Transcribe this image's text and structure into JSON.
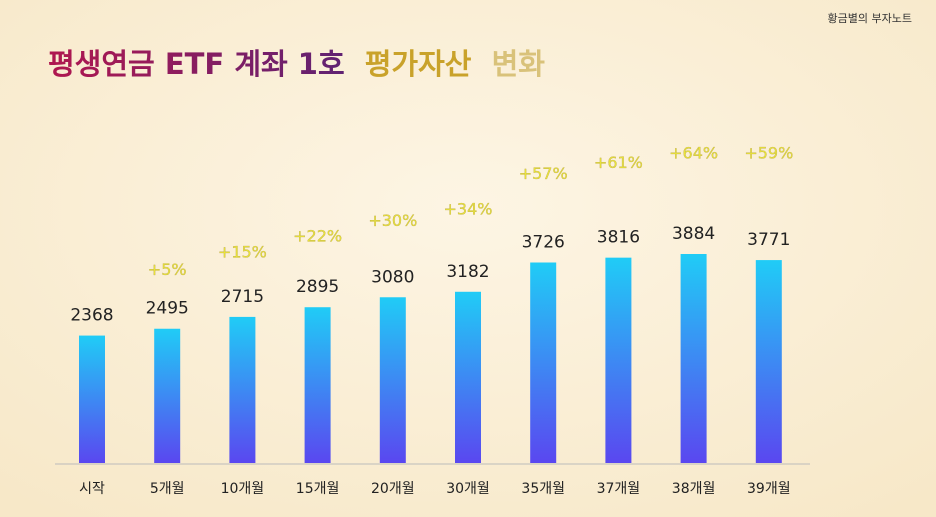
{
  "watermark": "황금별의 부자노트",
  "chart_data": {
    "type": "bar",
    "title": [
      "평생연금 ETF 계좌 1호",
      "평가자산",
      "변화"
    ],
    "categories": [
      "시작",
      "5개월",
      "10개월",
      "15개월",
      "20개월",
      "30개월",
      "35개월",
      "37개월",
      "38개월",
      "39개월"
    ],
    "values": [
      2368,
      2495,
      2715,
      2895,
      3080,
      3182,
      3726,
      3816,
      3884,
      3771
    ],
    "annotations": [
      null,
      "+5%",
      "+15%",
      "+22%",
      "+30%",
      "+34%",
      "+57%",
      "+61%",
      "+64%",
      "+59%"
    ],
    "color": [
      "#20ccf6",
      "#5a47f0"
    ]
  }
}
